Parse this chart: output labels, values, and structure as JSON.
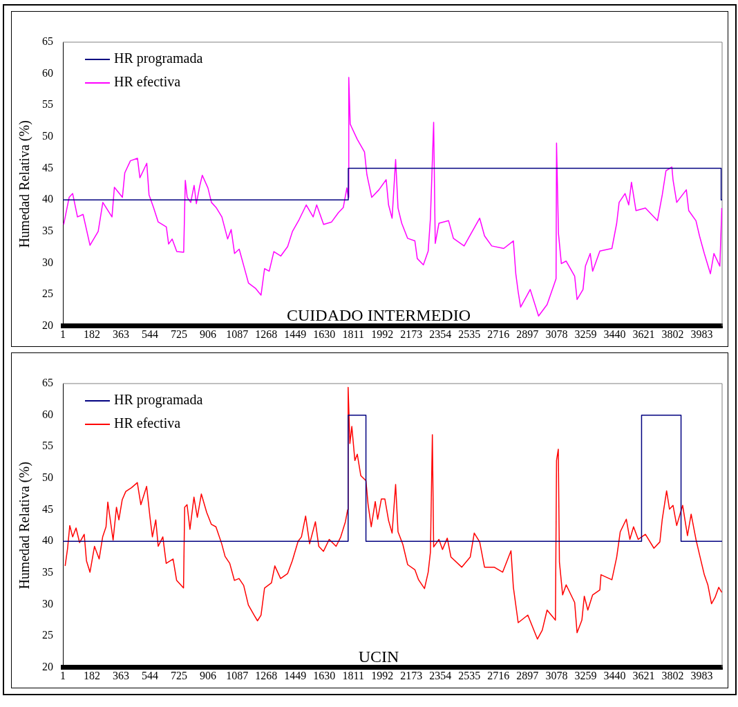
{
  "chart_data": [
    {
      "type": "line",
      "ylabel": "Humedad Relativa (%)",
      "annotations": [
        "CUIDADO INTERMEDIO"
      ],
      "xlim": [
        1,
        4110
      ],
      "xticks": [
        1,
        182,
        363,
        544,
        725,
        906,
        1087,
        1268,
        1449,
        1630,
        1811,
        1992,
        2173,
        2354,
        2535,
        2716,
        2897,
        3078,
        3259,
        3440,
        3621,
        3802,
        3983
      ],
      "ylim": [
        20,
        65
      ],
      "yticks": [
        20,
        25,
        30,
        35,
        40,
        45,
        50,
        55,
        60,
        65
      ],
      "grid": false,
      "legend": "top left",
      "marker": "none",
      "line_style": "solid",
      "series": [
        {
          "name": "HR programada",
          "color": "#000080",
          "x": [
            1,
            1780,
            1780,
            4104,
            4104,
            4110
          ],
          "values": [
            40,
            40,
            45,
            45,
            40,
            40
          ]
        },
        {
          "name": "HR efectiva",
          "color": "#ff00ff",
          "x": [
            6,
            40,
            62,
            92,
            127,
            170,
            221,
            250,
            307,
            322,
            372,
            387,
            422,
            466,
            481,
            524,
            538,
            566,
            595,
            646,
            660,
            682,
            711,
            754,
            764,
            776,
            798,
            819,
            833,
            855,
            870,
            905,
            927,
            956,
            992,
            1028,
            1050,
            1071,
            1100,
            1129,
            1158,
            1201,
            1236,
            1258,
            1287,
            1316,
            1359,
            1402,
            1432,
            1474,
            1518,
            1561,
            1583,
            1626,
            1676,
            1719,
            1749,
            1771,
            1780,
            1783,
            1792,
            1836,
            1881,
            1896,
            1926,
            1971,
            2016,
            2031,
            2053,
            2075,
            2090,
            2113,
            2150,
            2195,
            2210,
            2248,
            2278,
            2292,
            2312,
            2322,
            2345,
            2405,
            2435,
            2502,
            2555,
            2599,
            2629,
            2674,
            2749,
            2809,
            2824,
            2839,
            2854,
            2914,
            2966,
            3019,
            3063,
            3075,
            3078,
            3090,
            3108,
            3138,
            3191,
            3206,
            3243,
            3258,
            3288,
            3303,
            3348,
            3423,
            3453,
            3468,
            3505,
            3528,
            3545,
            3573,
            3632,
            3707,
            3737,
            3760,
            3797,
            3804,
            3827,
            3887,
            3902,
            3947,
            3969,
            3999,
            4037,
            4059,
            4096,
            4108
          ],
          "values": [
            36.1,
            40.4,
            41,
            37.3,
            37.7,
            32.8,
            35,
            39.6,
            37.3,
            42,
            40.4,
            44.3,
            46.2,
            46.6,
            43.5,
            45.8,
            40.8,
            38.8,
            36.5,
            35.7,
            33,
            33.8,
            31.8,
            31.7,
            43.1,
            40.4,
            39.6,
            42.3,
            39.4,
            42.3,
            43.9,
            41.9,
            39.6,
            38.8,
            37.3,
            33.8,
            35.3,
            31.5,
            32.2,
            29.5,
            26.8,
            26,
            24.9,
            29.1,
            28.7,
            31.8,
            31.1,
            32.6,
            35,
            36.9,
            39.2,
            37.3,
            39.2,
            36.1,
            36.5,
            38,
            38.8,
            41.9,
            40.4,
            59.4,
            52,
            49.6,
            47.6,
            44,
            40.4,
            41.6,
            43.2,
            39.2,
            37.1,
            46.4,
            38.7,
            36.3,
            33.9,
            33.5,
            30.7,
            29.7,
            31.9,
            37.1,
            52.3,
            33.1,
            36.3,
            36.7,
            33.9,
            32.7,
            35.1,
            37.1,
            34.3,
            32.7,
            32.3,
            33.5,
            28.3,
            25.4,
            23,
            25.8,
            21.6,
            23.4,
            26.6,
            27.5,
            49,
            34.7,
            29.9,
            30.3,
            27.9,
            24.2,
            25.8,
            29.5,
            31.5,
            28.7,
            31.9,
            32.3,
            36.3,
            39.6,
            41,
            39.2,
            42.8,
            38.3,
            38.7,
            36.7,
            40.8,
            44.6,
            45.2,
            43.2,
            39.6,
            41.6,
            38.3,
            36.7,
            34.3,
            31.5,
            28.3,
            31.5,
            29.5,
            38.7
          ]
        }
      ]
    },
    {
      "type": "line",
      "ylabel": "Humedad Relativa (%)",
      "annotations": [
        "UCIN"
      ],
      "xlim": [
        1,
        4110
      ],
      "xticks": [
        1,
        182,
        363,
        544,
        725,
        906,
        1087,
        1268,
        1449,
        1630,
        1811,
        1992,
        2173,
        2354,
        2535,
        2716,
        2897,
        3078,
        3259,
        3440,
        3621,
        3802,
        3983
      ],
      "ylim": [
        20,
        65
      ],
      "yticks": [
        20,
        25,
        30,
        35,
        40,
        45,
        50,
        55,
        60,
        65
      ],
      "grid": false,
      "legend": "top left",
      "marker": "none",
      "line_style": "solid",
      "series": [
        {
          "name": "HR programada",
          "color": "#000080",
          "x": [
            1,
            1779,
            1779,
            1890,
            1890,
            3608,
            3608,
            3854,
            3854,
            4110
          ],
          "values": [
            40,
            40,
            60,
            60,
            40,
            40,
            60,
            60,
            40,
            40
          ]
        },
        {
          "name": "HR efectiva",
          "color": "#ff0000",
          "x": [
            15,
            30,
            44,
            62,
            83,
            105,
            134,
            148,
            170,
            198,
            227,
            249,
            270,
            281,
            314,
            335,
            350,
            371,
            393,
            429,
            465,
            487,
            523,
            544,
            559,
            580,
            595,
            624,
            645,
            688,
            710,
            753,
            760,
            775,
            793,
            818,
            839,
            864,
            897,
            926,
            955,
            991,
            1012,
            1041,
            1070,
            1099,
            1128,
            1157,
            1193,
            1214,
            1236,
            1258,
            1301,
            1322,
            1358,
            1402,
            1431,
            1467,
            1488,
            1514,
            1539,
            1575,
            1596,
            1625,
            1661,
            1704,
            1733,
            1762,
            1776,
            1779,
            1790,
            1802,
            1821,
            1836,
            1858,
            1890,
            1903,
            1923,
            1948,
            1963,
            1986,
            2008,
            2031,
            2053,
            2075,
            2090,
            2120,
            2150,
            2195,
            2218,
            2255,
            2278,
            2292,
            2304,
            2312,
            2345,
            2367,
            2397,
            2420,
            2487,
            2540,
            2565,
            2599,
            2629,
            2689,
            2742,
            2794,
            2809,
            2839,
            2899,
            2959,
            2989,
            3019,
            3071,
            3078,
            3089,
            3096,
            3116,
            3138,
            3191,
            3206,
            3236,
            3251,
            3273,
            3303,
            3348,
            3355,
            3423,
            3453,
            3475,
            3513,
            3535,
            3558,
            3587,
            3632,
            3685,
            3722,
            3737,
            3764,
            3782,
            3804,
            3827,
            3864,
            3894,
            3917,
            3947,
            3969,
            3999,
            4021,
            4044,
            4066,
            4089,
            4108
          ],
          "values": [
            36.1,
            38.8,
            42.5,
            40.7,
            42.1,
            39.8,
            41.1,
            36.9,
            35.1,
            39.2,
            37.2,
            40.7,
            42.3,
            46.2,
            40.2,
            45.4,
            43.4,
            46.6,
            47.9,
            48.5,
            49.3,
            45.8,
            48.7,
            43.8,
            40.7,
            43.4,
            39.2,
            40.7,
            36.5,
            37.2,
            33.8,
            32.6,
            45.4,
            45.8,
            41.9,
            47,
            43.8,
            47.5,
            44.6,
            42.7,
            42.3,
            39.6,
            37.6,
            36.5,
            33.8,
            34.1,
            33,
            29.9,
            28.3,
            27.4,
            28.3,
            32.6,
            33.4,
            36.1,
            34.1,
            34.9,
            36.9,
            40,
            40.7,
            44,
            39.6,
            43.1,
            39.2,
            38.4,
            40.3,
            39.2,
            40.7,
            43.1,
            45,
            64.4,
            55.5,
            58.2,
            52.8,
            53.8,
            50.4,
            49.6,
            45.9,
            42.3,
            46.3,
            43.5,
            46.7,
            46.7,
            43.3,
            41.3,
            49,
            41.5,
            39.5,
            36.3,
            35.5,
            33.9,
            32.5,
            35.1,
            38.3,
            56.9,
            39.1,
            40.3,
            38.7,
            40.5,
            37.5,
            35.9,
            37.5,
            41.3,
            39.9,
            35.9,
            35.9,
            35.1,
            38.5,
            32.7,
            27.1,
            28.3,
            24.5,
            25.9,
            29.1,
            27.5,
            52.8,
            54.6,
            36.7,
            31.5,
            33.1,
            30.3,
            25.5,
            27.5,
            31.3,
            29.1,
            31.5,
            32.3,
            34.7,
            33.9,
            37.5,
            41.5,
            43.5,
            40.3,
            42.3,
            40.3,
            41.1,
            38.9,
            39.9,
            43.5,
            48,
            45.1,
            45.7,
            42.5,
            45.7,
            40.9,
            44.3,
            40.3,
            37.9,
            34.7,
            33.1,
            30.1,
            31.1,
            32.7,
            31.9
          ]
        }
      ]
    }
  ]
}
